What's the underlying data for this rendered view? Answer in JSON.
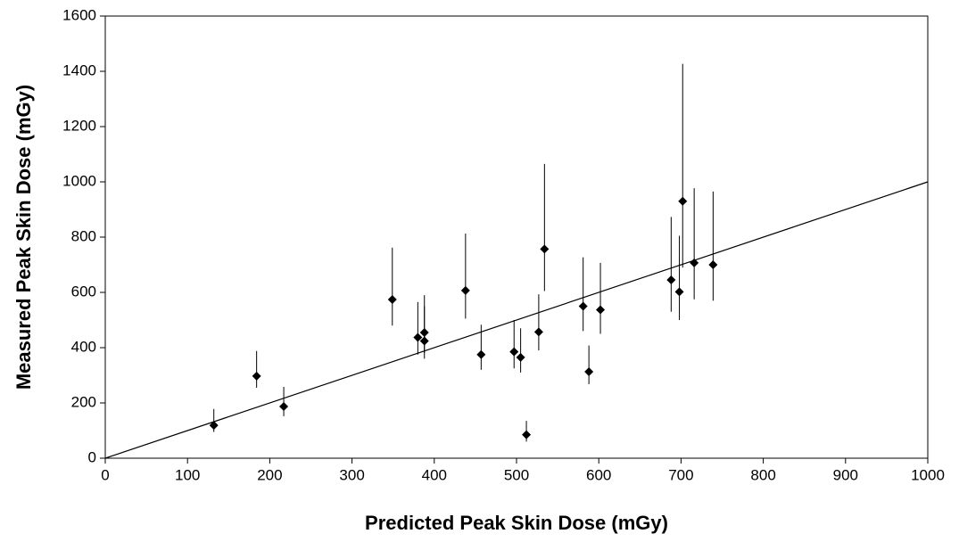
{
  "chart_data": {
    "type": "scatter",
    "x_label": "Predicted Peak Skin Dose (mGy)",
    "y_label": "Measured Peak Skin Dose (mGy)",
    "xlim": [
      0,
      1000
    ],
    "xticks": [
      0,
      100,
      200,
      300,
      400,
      500,
      600,
      700,
      800,
      900,
      1000
    ],
    "ylim": [
      0,
      1600
    ],
    "yticks": [
      0,
      200,
      400,
      600,
      800,
      1000,
      1200,
      1400,
      1600
    ],
    "grid": false,
    "series": [
      {
        "color": "#000000",
        "x": [
          132,
          184,
          217,
          349,
          380,
          388,
          388,
          438,
          457,
          497,
          505,
          512,
          527,
          534,
          581,
          588,
          602,
          688,
          698,
          702,
          716,
          739
        ],
        "values": [
          119,
          297,
          187,
          574,
          437,
          455,
          424,
          607,
          375,
          385,
          365,
          85,
          457,
          757,
          550,
          313,
          537,
          645,
          602,
          930,
          707,
          700
        ],
        "y_low": [
          95,
          255,
          152,
          480,
          375,
          380,
          360,
          505,
          320,
          325,
          310,
          60,
          390,
          605,
          460,
          268,
          450,
          530,
          500,
          690,
          575,
          570
        ],
        "y_high": [
          178,
          388,
          258,
          762,
          565,
          590,
          550,
          813,
          483,
          500,
          470,
          135,
          593,
          1065,
          727,
          408,
          707,
          873,
          805,
          1427,
          977,
          965
        ]
      }
    ],
    "reference_line": {
      "color": "#000000",
      "x": [
        0,
        1000
      ],
      "y": [
        0,
        1000
      ]
    }
  }
}
